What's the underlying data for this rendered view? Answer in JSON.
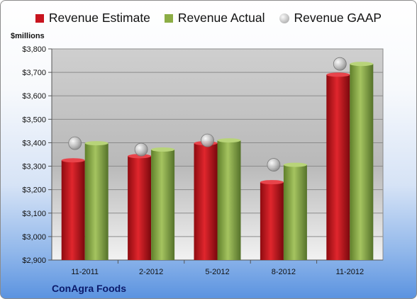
{
  "legend": {
    "estimate": "Revenue Estimate",
    "actual": "Revenue Actual",
    "gaap": "Revenue GAAP"
  },
  "unit_label": "$millions",
  "company": "ConAgra Foods",
  "colors": {
    "estimate": "#c8141e",
    "actual": "#8cad45",
    "gaap": "#b4b4b4"
  },
  "chart_data": {
    "type": "bar",
    "categories": [
      "11-2011",
      "2-2012",
      "5-2012",
      "8-2012",
      "11-2012"
    ],
    "series": [
      {
        "name": "Revenue Estimate",
        "values": [
          3325,
          3343,
          3398,
          3232,
          3690
        ]
      },
      {
        "name": "Revenue Actual",
        "values": [
          3398,
          3371,
          3410,
          3306,
          3736
        ]
      },
      {
        "name": "Revenue GAAP",
        "values": [
          3398,
          3371,
          3410,
          3306,
          3736
        ],
        "style": "marker"
      }
    ],
    "ylim": [
      2900,
      3800
    ],
    "yticks": [
      "$2,900",
      "$3,000",
      "$3,100",
      "$3,200",
      "$3,300",
      "$3,400",
      "$3,500",
      "$3,600",
      "$3,700",
      "$3,800"
    ],
    "ytick_values": [
      2900,
      3000,
      3100,
      3200,
      3300,
      3400,
      3500,
      3600,
      3700,
      3800
    ],
    "grid": true,
    "legend_position": "top"
  }
}
